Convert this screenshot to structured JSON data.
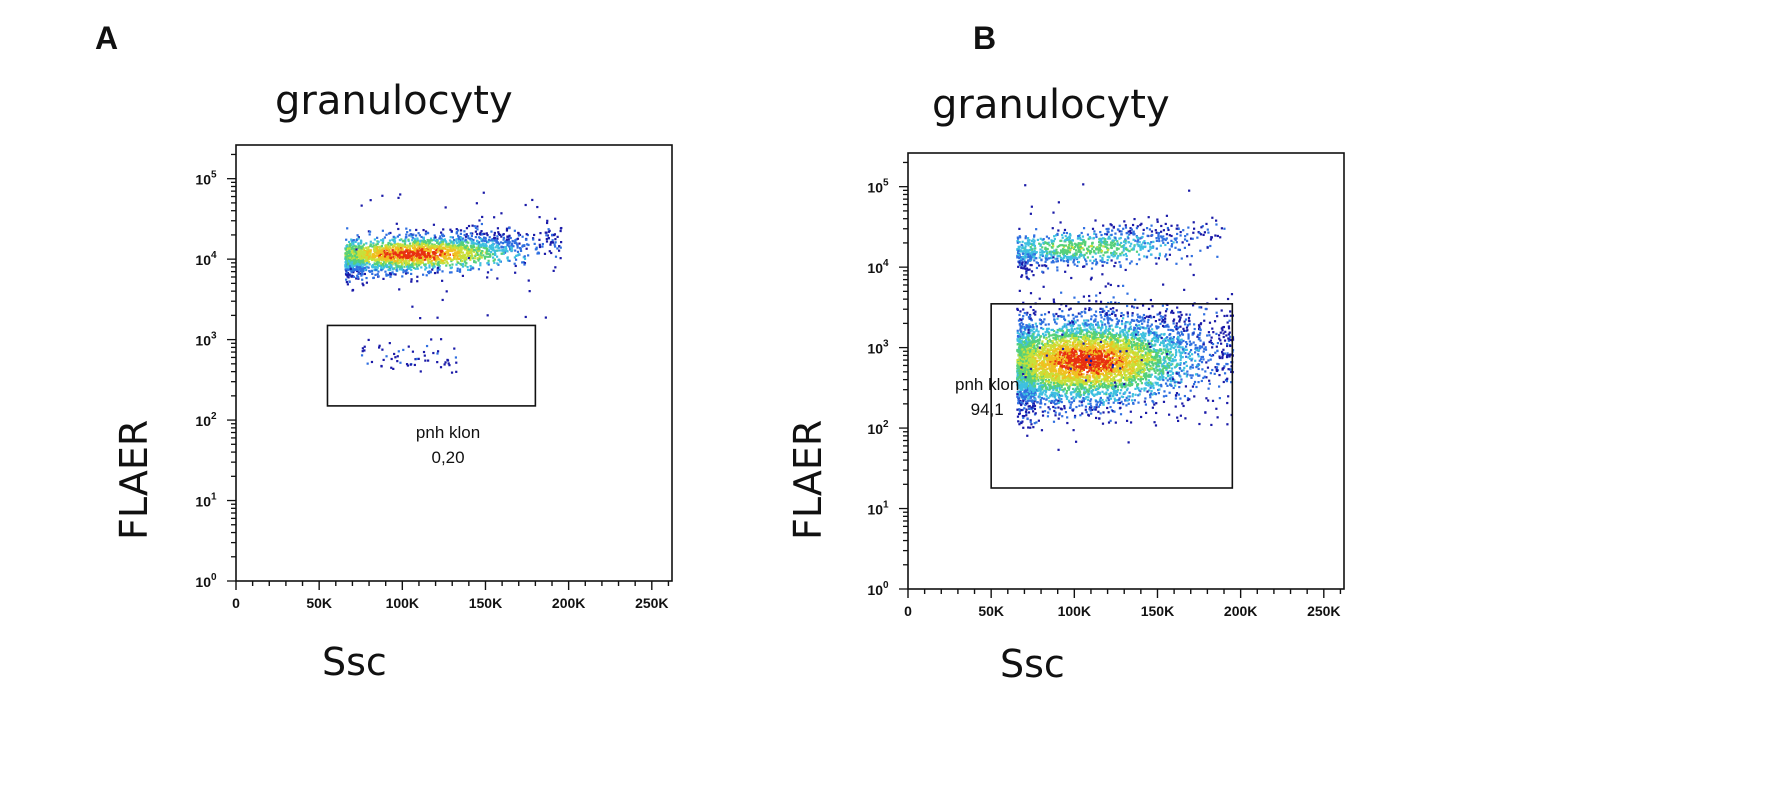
{
  "chart_data": [
    {
      "panel": "A",
      "type": "scatter",
      "title": "granulocyty",
      "xlabel": "Ssc",
      "ylabel": "FLAER",
      "x_scale": "linear",
      "y_scale": "log",
      "xlim": [
        0,
        262144
      ],
      "ylim": [
        1,
        262144
      ],
      "x_tick_labels": [
        "0",
        "50K",
        "100K",
        "150K",
        "200K",
        "250K"
      ],
      "x_tick_values": [
        0,
        50000,
        100000,
        150000,
        200000,
        250000
      ],
      "y_tick_labels": [
        "10^0",
        "10^1",
        "10^2",
        "10^3",
        "10^4",
        "10^5"
      ],
      "y_tick_values": [
        1,
        10,
        100,
        1000,
        10000,
        100000
      ],
      "populations": [
        {
          "ssc_range": [
            65000,
            195000
          ],
          "flaer_center": 12000,
          "density": "high",
          "events": 2200
        },
        {
          "ssc_range": [
            75000,
            135000
          ],
          "flaer_center": 600,
          "density": "low",
          "events": 60
        }
      ],
      "gate": {
        "label": "pnh klon",
        "value": "0,20",
        "ssc_range": [
          55000,
          180000
        ],
        "flaer_range": [
          150,
          1500
        ]
      }
    },
    {
      "panel": "B",
      "type": "scatter",
      "title": "granulocyty",
      "xlabel": "Ssc",
      "ylabel": "FLAER",
      "x_scale": "linear",
      "y_scale": "log",
      "xlim": [
        0,
        262144
      ],
      "ylim": [
        1,
        262144
      ],
      "x_tick_labels": [
        "0",
        "50K",
        "100K",
        "150K",
        "200K",
        "250K"
      ],
      "x_tick_values": [
        0,
        50000,
        100000,
        150000,
        200000,
        250000
      ],
      "y_tick_labels": [
        "10^0",
        "10^1",
        "10^2",
        "10^3",
        "10^4",
        "10^5"
      ],
      "y_tick_values": [
        1,
        10,
        100,
        1000,
        10000,
        100000
      ],
      "populations": [
        {
          "ssc_range": [
            65000,
            190000
          ],
          "flaer_center": 18000,
          "density": "medium",
          "events": 900
        },
        {
          "ssc_range": [
            65000,
            195000
          ],
          "flaer_center": 700,
          "density": "high",
          "events": 5200
        }
      ],
      "gate": {
        "label": "pnh klon",
        "value": "94,1",
        "ssc_range": [
          50000,
          195000
        ],
        "flaer_range": [
          18,
          3500
        ]
      }
    }
  ],
  "colors": {
    "density_scale": [
      "#1a1aa8",
      "#2f6fe0",
      "#3ec0e0",
      "#55d07a",
      "#c8e03a",
      "#f0c020",
      "#e83010"
    ],
    "axis": "#111111",
    "gate": "#111111"
  }
}
